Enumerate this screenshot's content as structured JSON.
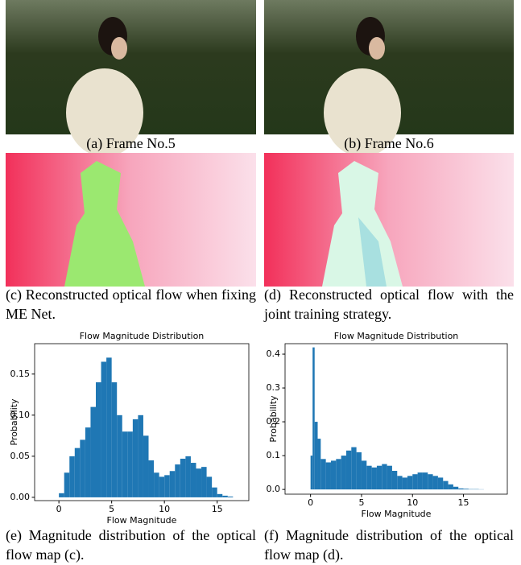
{
  "figure": {
    "captions": {
      "a": "(a) Frame No.5",
      "b": "(b) Frame No.6",
      "c": "(c) Reconstructed optical flow when fixing ME Net.",
      "d": "(d) Reconstructed optical flow with the joint training strategy.",
      "e": "(e) Magnitude distribution of the optical flow map (c).",
      "f": "(f) Magnitude distribution of the optical flow map (d)."
    }
  },
  "chart_data": [
    {
      "type": "histogram",
      "title": "Flow Magnitude Distribution",
      "x_label": "Flow Magnitude",
      "y_label": "Probability",
      "color": "#1f77b4",
      "bins": [
        0,
        0.5,
        1,
        1.5,
        2,
        2.5,
        3,
        3.5,
        4,
        4.5,
        5,
        5.5,
        6,
        6.5,
        7,
        7.5,
        8,
        8.5,
        9,
        9.5,
        10,
        10.5,
        11,
        11.5,
        12,
        12.5,
        13,
        13.5,
        14,
        14.5,
        15,
        15.5,
        16,
        16.5
      ],
      "values": [
        0.005,
        0.03,
        0.05,
        0.06,
        0.07,
        0.085,
        0.11,
        0.14,
        0.165,
        0.17,
        0.14,
        0.1,
        0.08,
        0.08,
        0.095,
        0.1,
        0.075,
        0.045,
        0.03,
        0.025,
        0.027,
        0.032,
        0.04,
        0.047,
        0.05,
        0.042,
        0.035,
        0.037,
        0.025,
        0.012,
        0.004,
        0.002,
        0.001
      ],
      "xlim": [
        -2.3,
        18
      ],
      "ylim": [
        -0.004,
        0.187
      ],
      "xticks": [
        0,
        5,
        10,
        15
      ],
      "yticks": [
        {
          "value": 0,
          "label": "0.00"
        },
        0.05,
        {
          "value": 0.1,
          "label": "0.10"
        },
        0.15
      ]
    },
    {
      "type": "histogram",
      "title": "Flow Magnitude Distribution",
      "x_label": "Flow Magnitude",
      "y_label": "Probability",
      "color": "#1f77b4",
      "bins": [
        0,
        0.2,
        0.4,
        0.7,
        1,
        1.5,
        2,
        2.5,
        3,
        3.5,
        4,
        4.5,
        5,
        5.5,
        6,
        6.5,
        7,
        7.5,
        8,
        8.5,
        9,
        9.5,
        10,
        10.5,
        11,
        11.5,
        12,
        12.5,
        13,
        13.5,
        14,
        14.5,
        15,
        15.5,
        16,
        16.5,
        17
      ],
      "values": [
        0.1,
        0.42,
        0.2,
        0.15,
        0.09,
        0.08,
        0.085,
        0.09,
        0.1,
        0.115,
        0.125,
        0.11,
        0.085,
        0.07,
        0.065,
        0.07,
        0.075,
        0.07,
        0.055,
        0.04,
        0.035,
        0.04,
        0.045,
        0.05,
        0.05,
        0.045,
        0.04,
        0.035,
        0.025,
        0.015,
        0.008,
        0.003,
        0.002,
        0.001,
        0.001,
        0.0005
      ],
      "xlim": [
        -2.5,
        19.3
      ],
      "ylim": [
        -0.014,
        0.431
      ],
      "xticks": [
        0,
        5,
        10,
        15
      ],
      "yticks": [
        {
          "value": 0,
          "label": "0.0"
        },
        0.1,
        0.2,
        0.3,
        0.4
      ]
    }
  ]
}
